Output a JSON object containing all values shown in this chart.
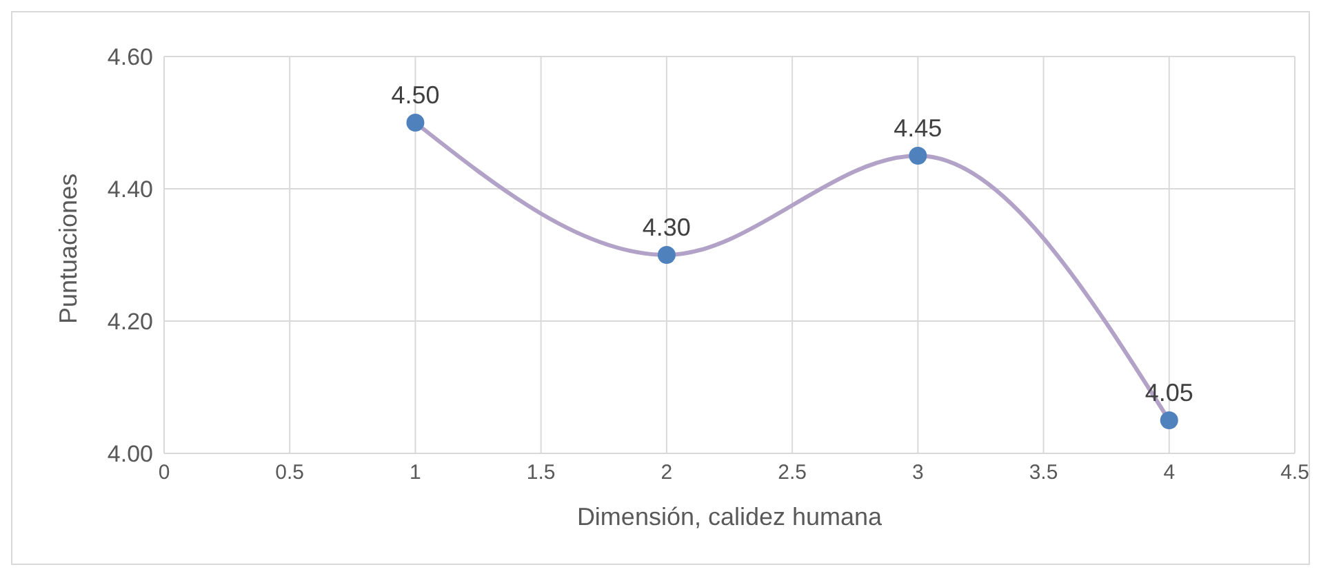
{
  "chart_data": {
    "type": "line",
    "xlabel": "Dimensión, calidez humana",
    "ylabel": "Puntuaciones",
    "x": [
      1,
      2,
      3,
      4
    ],
    "series": [
      {
        "color": "#b3a2c7",
        "colors": [
          "#4f81bd",
          "#4f81bd",
          "#4f81bd",
          "#4f81bd"
        ],
        "values": [
          4.5,
          4.3,
          4.45,
          4.05
        ],
        "value_labels": [
          "4.50",
          "4.30",
          "4.45",
          "4.05"
        ]
      }
    ],
    "xlim": [
      0,
      4.5
    ],
    "xticks": [
      0,
      0.5,
      1,
      1.5,
      2,
      2.5,
      3,
      3.5,
      4,
      4.5
    ],
    "ylim": [
      4,
      4.6
    ],
    "yticks": [
      {
        "value": 4,
        "label": "4.00"
      },
      {
        "value": 4.2,
        "label": "4.20"
      },
      {
        "value": 4.4,
        "label": "4.40"
      },
      {
        "value": 4.6,
        "label": "4.60"
      }
    ],
    "grid": true,
    "marker": "circle",
    "legend": false
  }
}
